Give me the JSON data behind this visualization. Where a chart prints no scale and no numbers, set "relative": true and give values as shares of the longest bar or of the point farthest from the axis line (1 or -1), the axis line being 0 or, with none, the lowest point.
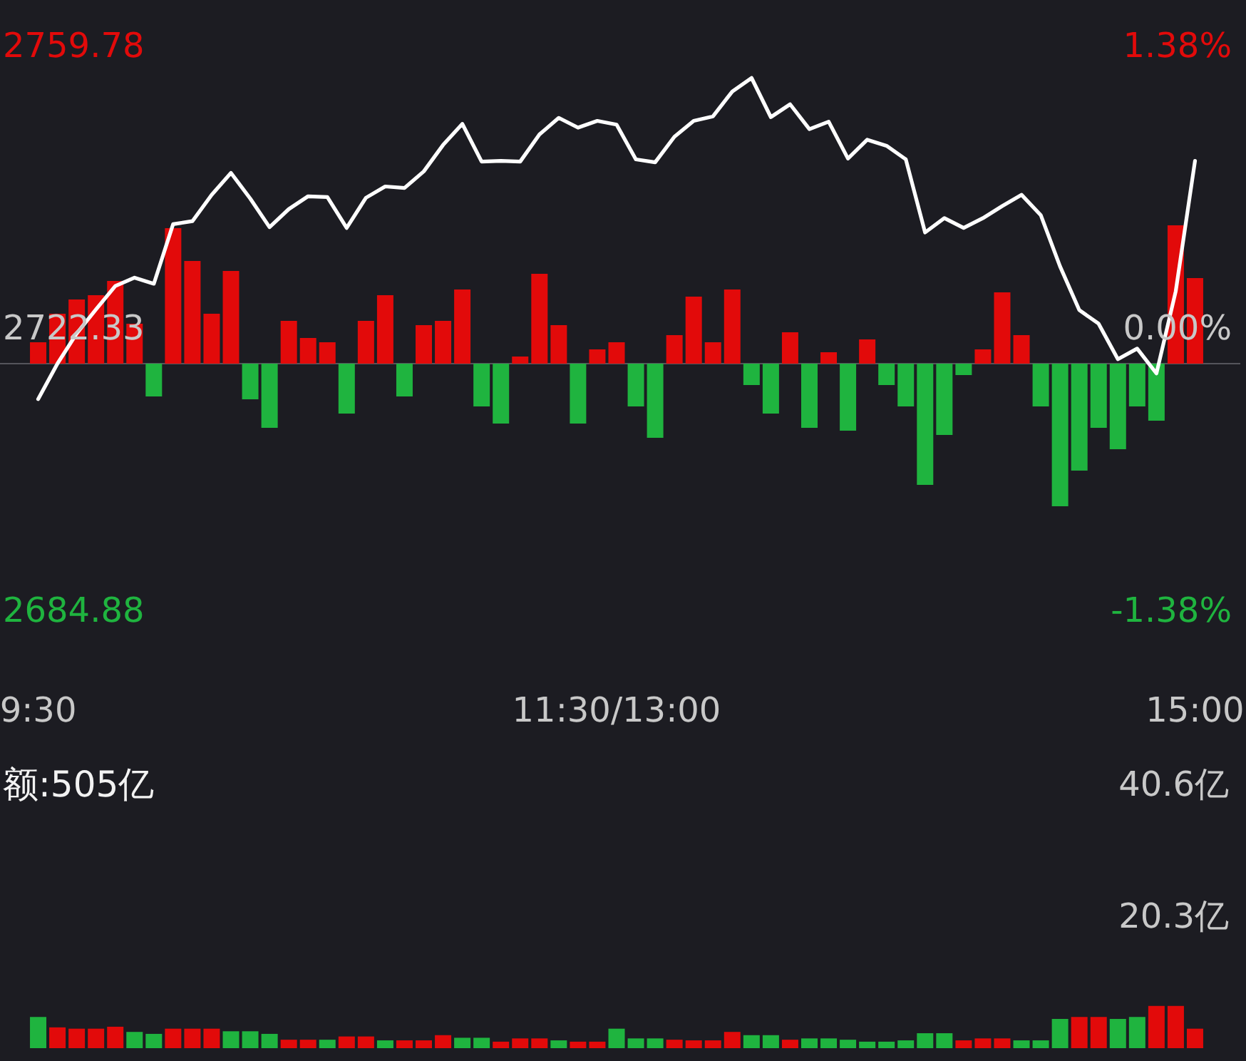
{
  "chart_data": [
    {
      "type": "line",
      "categories": [
        "9:30",
        null,
        null,
        null,
        null,
        null,
        null,
        null,
        null,
        null,
        null,
        null,
        null,
        null,
        null,
        null,
        null,
        null,
        null,
        null,
        null,
        null,
        null,
        null,
        null,
        null,
        null,
        null,
        null,
        null,
        "11:30/13:00",
        null,
        null,
        null,
        null,
        null,
        null,
        null,
        null,
        null,
        null,
        null,
        null,
        null,
        null,
        null,
        null,
        null,
        null,
        null,
        null,
        null,
        null,
        null,
        null,
        null,
        null,
        null,
        null,
        null,
        "15:00"
      ],
      "series": [
        {
          "color": "#ffffff",
          "values": [
            2712.9,
            2717.6,
            2721.6,
            2724.8,
            2727.9,
            2729.0,
            2728.2,
            2736.1,
            2736.5,
            2740.0,
            2742.9,
            2739.5,
            2735.7,
            2738.1,
            2739.8,
            2739.7,
            2735.6,
            2739.6,
            2741.1,
            2740.9,
            2743.1,
            2746.6,
            2749.4,
            2744.4,
            2744.5,
            2744.4,
            2748.0,
            2750.2,
            2748.9,
            2749.8,
            2749.3,
            2744.7,
            2744.3,
            2747.7,
            2749.8,
            2750.4,
            2753.7,
            2755.5,
            2750.3,
            2752.0,
            2748.7,
            2749.7,
            2744.8,
            2747.3,
            2746.5,
            2744.7,
            2735.0,
            2736.9,
            2735.6,
            2736.9,
            2738.5,
            2740.0,
            2737.3,
            2730.5,
            2724.7,
            2722.9,
            2718.2,
            2719.6,
            2716.3,
            2727.2,
            2744.5
          ]
        }
      ],
      "ylim": [
        2684.88,
        2759.78
      ],
      "yticks": [
        2684.88,
        2722.33,
        2759.78
      ],
      "y2lim": [
        -1.38,
        1.38
      ],
      "y2ticks": [
        {
          "value": -1.38,
          "label": "-1.38%"
        },
        {
          "value": 0,
          "label": "0.00%"
        },
        {
          "value": 1.38,
          "label": "1.38%"
        }
      ]
    },
    {
      "type": "bar",
      "relative": true,
      "tick_labels": false,
      "categories": [
        null,
        null,
        null,
        null,
        null,
        null,
        null,
        null,
        null,
        null,
        null,
        null,
        null,
        null,
        null,
        null,
        null,
        null,
        null,
        null,
        null,
        null,
        null,
        null,
        null,
        null,
        null,
        null,
        null,
        null,
        null,
        null,
        null,
        null,
        null,
        null,
        null,
        null,
        null,
        null,
        null,
        null,
        null,
        null,
        null,
        null,
        null,
        null,
        null,
        null,
        null,
        null,
        null,
        null,
        null,
        null,
        null,
        null,
        null,
        null,
        null
      ],
      "values": [
        0.15,
        0.35,
        0.45,
        0.48,
        0.58,
        0.28,
        -0.23,
        0.95,
        0.72,
        0.35,
        0.65,
        -0.25,
        -0.45,
        0.3,
        0.18,
        0.15,
        -0.35,
        0.3,
        0.48,
        -0.23,
        0.27,
        0.3,
        0.52,
        -0.3,
        -0.42,
        0.05,
        0.63,
        0.27,
        -0.42,
        0.1,
        0.15,
        -0.3,
        -0.52,
        0.2,
        0.47,
        0.15,
        0.52,
        -0.15,
        -0.35,
        0.22,
        -0.45,
        0.08,
        -0.47,
        0.17,
        -0.15,
        -0.3,
        -0.85,
        -0.5,
        -0.08,
        0.1,
        0.5,
        0.2,
        -0.3,
        -1.0,
        -0.75,
        -0.45,
        -0.6,
        -0.3,
        -0.4,
        0.97,
        0.6
      ],
      "colors": [
        "#e20a0a",
        "#e20a0a",
        "#e20a0a",
        "#e20a0a",
        "#e20a0a",
        "#e20a0a",
        "#1fb43f",
        "#e20a0a",
        "#e20a0a",
        "#e20a0a",
        "#e20a0a",
        "#1fb43f",
        "#1fb43f",
        "#e20a0a",
        "#e20a0a",
        "#e20a0a",
        "#1fb43f",
        "#e20a0a",
        "#e20a0a",
        "#1fb43f",
        "#e20a0a",
        "#e20a0a",
        "#e20a0a",
        "#1fb43f",
        "#1fb43f",
        "#e20a0a",
        "#e20a0a",
        "#e20a0a",
        "#1fb43f",
        "#e20a0a",
        "#e20a0a",
        "#1fb43f",
        "#1fb43f",
        "#e20a0a",
        "#e20a0a",
        "#e20a0a",
        "#e20a0a",
        "#1fb43f",
        "#1fb43f",
        "#e20a0a",
        "#1fb43f",
        "#e20a0a",
        "#1fb43f",
        "#e20a0a",
        "#1fb43f",
        "#1fb43f",
        "#1fb43f",
        "#1fb43f",
        "#1fb43f",
        "#e20a0a",
        "#e20a0a",
        "#e20a0a",
        "#1fb43f",
        "#1fb43f",
        "#1fb43f",
        "#1fb43f",
        "#1fb43f",
        "#1fb43f",
        "#1fb43f",
        "#e20a0a",
        "#e20a0a"
      ]
    },
    {
      "type": "bar",
      "title": "额:505亿",
      "tick_labels": "y",
      "categories": [
        null,
        null,
        null,
        null,
        null,
        null,
        null,
        null,
        null,
        null,
        null,
        null,
        null,
        null,
        null,
        null,
        null,
        null,
        null,
        null,
        null,
        null,
        null,
        null,
        null,
        null,
        null,
        null,
        null,
        null,
        null,
        null,
        null,
        null,
        null,
        null,
        null,
        null,
        null,
        null,
        null,
        null,
        null,
        null,
        null,
        null,
        null,
        null,
        null,
        null,
        null,
        null,
        null,
        null,
        null,
        null,
        null,
        null,
        null,
        null,
        null
      ],
      "values": [
        4.8,
        3.2,
        3.0,
        3.0,
        3.3,
        2.5,
        2.2,
        3.0,
        3.0,
        3.0,
        2.6,
        2.6,
        2.2,
        1.3,
        1.3,
        1.3,
        1.8,
        1.8,
        1.2,
        1.2,
        1.2,
        2.0,
        1.6,
        1.6,
        1.0,
        1.5,
        1.5,
        1.2,
        1.0,
        1.0,
        3.0,
        1.5,
        1.5,
        1.3,
        1.2,
        1.2,
        2.5,
        2.0,
        2.0,
        1.3,
        1.5,
        1.5,
        1.3,
        1.0,
        1.0,
        1.2,
        2.3,
        2.3,
        1.2,
        1.5,
        1.5,
        1.2,
        1.2,
        4.5,
        4.8,
        4.8,
        4.5,
        4.8,
        6.5,
        6.5,
        3.0
      ],
      "colors": [
        "#1fb43f",
        "#e20a0a",
        "#e20a0a",
        "#e20a0a",
        "#e20a0a",
        "#1fb43f",
        "#1fb43f",
        "#e20a0a",
        "#e20a0a",
        "#e20a0a",
        "#1fb43f",
        "#1fb43f",
        "#1fb43f",
        "#e20a0a",
        "#e20a0a",
        "#1fb43f",
        "#e20a0a",
        "#e20a0a",
        "#1fb43f",
        "#e20a0a",
        "#e20a0a",
        "#e20a0a",
        "#1fb43f",
        "#1fb43f",
        "#e20a0a",
        "#e20a0a",
        "#e20a0a",
        "#1fb43f",
        "#e20a0a",
        "#e20a0a",
        "#1fb43f",
        "#1fb43f",
        "#1fb43f",
        "#e20a0a",
        "#e20a0a",
        "#e20a0a",
        "#e20a0a",
        "#1fb43f",
        "#1fb43f",
        "#e20a0a",
        "#1fb43f",
        "#1fb43f",
        "#1fb43f",
        "#1fb43f",
        "#1fb43f",
        "#1fb43f",
        "#1fb43f",
        "#1fb43f",
        "#e20a0a",
        "#e20a0a",
        "#e20a0a",
        "#1fb43f",
        "#1fb43f",
        "#1fb43f",
        "#e20a0a",
        "#e20a0a",
        "#1fb43f",
        "#1fb43f",
        "#e20a0a",
        "#e20a0a",
        "#e20a0a"
      ],
      "ylim": [
        0,
        40.6
      ],
      "yticks": [
        {
          "value": 20.3,
          "label": "20.3亿"
        },
        {
          "value": 40.6,
          "label": "40.6亿"
        }
      ]
    }
  ]
}
